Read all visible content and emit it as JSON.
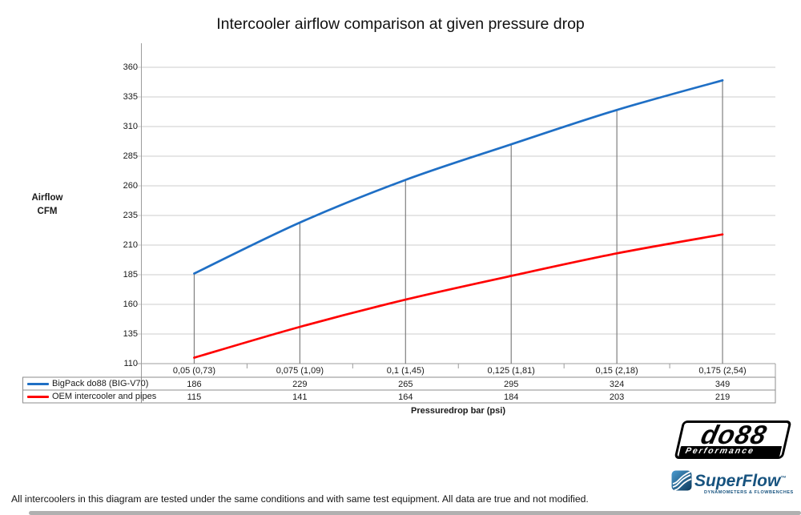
{
  "chart_data": {
    "type": "line",
    "title": "Intercooler airflow comparison at given pressure drop",
    "xlabel": "Pressuredrop bar (psi)",
    "ylabel_lines": [
      "Airflow",
      "CFM"
    ],
    "ylim": [
      110,
      360
    ],
    "ytick_step": 25,
    "yticks": [
      360,
      335,
      310,
      285,
      260,
      235,
      210,
      185,
      160,
      135,
      110
    ],
    "categories": [
      "0,05 (0,73)",
      "0,075 (1,09)",
      "0,1 (1,45)",
      "0,125 (1,81)",
      "0,15 (2,18)",
      "0,175 (2,54)"
    ],
    "series": [
      {
        "name": "BigPack do88 (BIG-V70)",
        "color": "#1f6fc5",
        "values": [
          186,
          229,
          265,
          295,
          324,
          349
        ]
      },
      {
        "name": "OEM intercooler and pipes",
        "color": "#ff0000",
        "values": [
          115,
          141,
          164,
          184,
          203,
          219
        ]
      }
    ],
    "grid": true,
    "drop_lines": true,
    "legend_position": "table-left"
  },
  "footer": {
    "text": "All intercoolers in this diagram are tested under the same conditions and with same test equipment. All data are true and not modified."
  },
  "logos": {
    "do88": {
      "name": "do88",
      "tagline": "Performance"
    },
    "superflow": {
      "name": "SuperFlow",
      "tm": "™",
      "tagline": "DYNAMOMETERS & FLOWBENCHES"
    }
  }
}
